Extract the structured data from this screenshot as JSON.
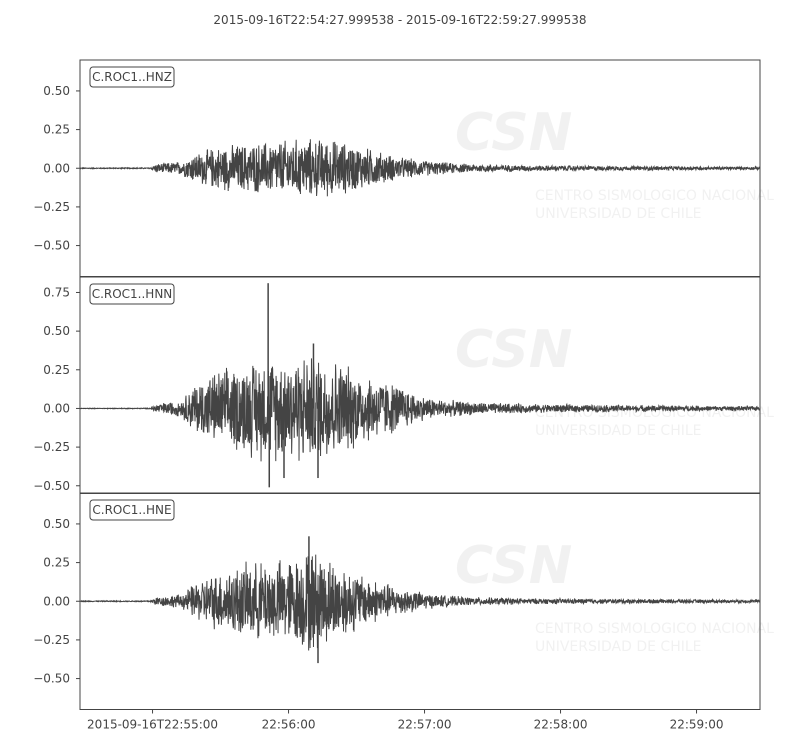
{
  "chart_data": {
    "type": "line",
    "title": "2015-09-16T22:54:27.999538  -  2015-09-16T22:59:27.999538",
    "x_range": [
      "2015-09-16T22:54:27.999538",
      "2015-09-16T22:59:27.999538"
    ],
    "x_tick_labels": [
      "2015-09-16T22:55:00",
      "22:56:00",
      "22:57:00",
      "22:58:00",
      "22:59:00"
    ],
    "x_tick_times_s": [
      32,
      92,
      152,
      212,
      272
    ],
    "grid": false,
    "line_color": "#444444",
    "watermark": "CSN CENTRO SISMOLOGICO NACIONAL UNIVERSIDAD DE CHILE",
    "panels": [
      {
        "station_label": "C.ROC1..HNZ",
        "ylim": [
          -0.7,
          0.7
        ],
        "y_ticks": [
          -0.5,
          -0.25,
          0.0,
          0.25,
          0.5
        ],
        "y_tick_labels": [
          "−0.50",
          "−0.25",
          "0.00",
          "0.25",
          "0.50"
        ],
        "envelope": [
          [
            0,
            0.003
          ],
          [
            31,
            0.004
          ],
          [
            33,
            0.03
          ],
          [
            45,
            0.05
          ],
          [
            50,
            0.1
          ],
          [
            58,
            0.14
          ],
          [
            63,
            0.16
          ],
          [
            72,
            0.17
          ],
          [
            86,
            0.19
          ],
          [
            100,
            0.21
          ],
          [
            112,
            0.2
          ],
          [
            125,
            0.15
          ],
          [
            140,
            0.08
          ],
          [
            155,
            0.05
          ],
          [
            170,
            0.03
          ],
          [
            200,
            0.02
          ],
          [
            300,
            0.01
          ]
        ]
      },
      {
        "station_label": "C.ROC1..HNN",
        "ylim": [
          -0.55,
          0.85
        ],
        "y_ticks": [
          -0.5,
          -0.25,
          0.0,
          0.25,
          0.5,
          0.75
        ],
        "y_tick_labels": [
          "−0.50",
          "−0.25",
          "0.00",
          "0.25",
          "0.50",
          "0.75"
        ],
        "envelope": [
          [
            0,
            0.002
          ],
          [
            31,
            0.003
          ],
          [
            33,
            0.03
          ],
          [
            45,
            0.06
          ],
          [
            50,
            0.17
          ],
          [
            60,
            0.26
          ],
          [
            70,
            0.3
          ],
          [
            80,
            0.36
          ],
          [
            100,
            0.38
          ],
          [
            112,
            0.35
          ],
          [
            125,
            0.25
          ],
          [
            140,
            0.17
          ],
          [
            150,
            0.09
          ],
          [
            160,
            0.06
          ],
          [
            180,
            0.04
          ],
          [
            200,
            0.03
          ],
          [
            300,
            0.015
          ]
        ],
        "spikes": [
          {
            "t": 83,
            "value": 0.81
          },
          {
            "t": 83.5,
            "value": -0.51
          },
          {
            "t": 90,
            "value": -0.45
          },
          {
            "t": 103,
            "value": 0.42
          },
          {
            "t": 105,
            "value": -0.45
          }
        ]
      },
      {
        "station_label": "C.ROC1..HNE",
        "ylim": [
          -0.7,
          0.7
        ],
        "y_ticks": [
          -0.5,
          -0.25,
          0.0,
          0.25,
          0.5
        ],
        "y_tick_labels": [
          "−0.50",
          "−0.25",
          "0.00",
          "0.25",
          "0.50"
        ],
        "envelope": [
          [
            0,
            0.003
          ],
          [
            31,
            0.004
          ],
          [
            33,
            0.03
          ],
          [
            45,
            0.05
          ],
          [
            50,
            0.12
          ],
          [
            60,
            0.2
          ],
          [
            70,
            0.25
          ],
          [
            82,
            0.28
          ],
          [
            95,
            0.3
          ],
          [
            102,
            0.38
          ],
          [
            110,
            0.3
          ],
          [
            125,
            0.18
          ],
          [
            140,
            0.1
          ],
          [
            155,
            0.05
          ],
          [
            170,
            0.03
          ],
          [
            200,
            0.02
          ],
          [
            300,
            0.01
          ]
        ],
        "spikes": [
          {
            "t": 101,
            "value": 0.42
          },
          {
            "t": 105,
            "value": -0.4
          }
        ]
      }
    ]
  }
}
